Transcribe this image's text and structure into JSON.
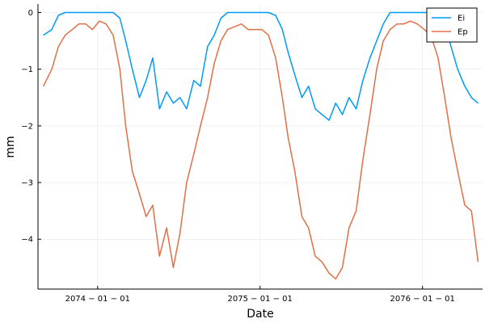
{
  "chart_data": {
    "type": "line",
    "xlabel": "Date",
    "ylabel": "mm",
    "xlim": [
      "2073-08-20",
      "2076-05-15"
    ],
    "ylim": [
      -4.88,
      0.15
    ],
    "xticks": [
      {
        "value": "2074-01-01",
        "label": "2074 − 01 − 01"
      },
      {
        "value": "2075-01-01",
        "label": "2075 − 01 − 01"
      },
      {
        "value": "2076-01-01",
        "label": "2076 − 01 − 01"
      }
    ],
    "yticks": [
      0,
      -1,
      -2,
      -3,
      -4
    ],
    "ytick_labels": [
      "0",
      "−1",
      "−2",
      "−3",
      "−4"
    ],
    "grid": true,
    "legend": "top-right",
    "series": [
      {
        "name": "Ei",
        "color": "#009af9",
        "x": [
          "2073-09-01",
          "2073-09-20",
          "2073-10-05",
          "2073-10-20",
          "2073-11-05",
          "2073-11-20",
          "2073-12-05",
          "2073-12-20",
          "2074-01-05",
          "2074-01-20",
          "2074-02-05",
          "2074-02-20",
          "2074-03-05",
          "2074-03-20",
          "2074-04-05",
          "2074-04-20",
          "2074-05-05",
          "2074-05-20",
          "2074-06-05",
          "2074-06-20",
          "2074-07-05",
          "2074-07-20",
          "2074-08-05",
          "2074-08-20",
          "2074-09-05",
          "2074-09-20",
          "2074-10-05",
          "2074-10-20",
          "2074-11-05",
          "2074-11-20",
          "2074-12-05",
          "2074-12-20",
          "2075-01-05",
          "2075-01-20",
          "2075-02-05",
          "2075-02-20",
          "2075-03-05",
          "2075-03-20",
          "2075-04-05",
          "2075-04-20",
          "2075-05-05",
          "2075-05-20",
          "2075-06-05",
          "2075-06-20",
          "2075-07-05",
          "2075-07-20",
          "2075-08-05",
          "2075-08-20",
          "2075-09-05",
          "2075-09-20",
          "2075-10-05",
          "2075-10-20",
          "2075-11-05",
          "2075-11-20",
          "2075-12-05",
          "2075-12-20",
          "2076-01-05",
          "2076-01-20",
          "2076-02-05",
          "2076-02-20",
          "2076-03-05",
          "2076-03-20",
          "2076-04-05",
          "2076-04-20",
          "2076-05-05"
        ],
        "y": [
          -0.4,
          -0.3,
          -0.05,
          0,
          0,
          0,
          0,
          0,
          0,
          0,
          0,
          -0.1,
          -0.5,
          -1.0,
          -1.5,
          -1.2,
          -0.8,
          -1.7,
          -1.4,
          -1.6,
          -1.5,
          -1.7,
          -1.2,
          -1.3,
          -0.6,
          -0.4,
          -0.1,
          0,
          0,
          0,
          0,
          0,
          0,
          0,
          -0.05,
          -0.3,
          -0.7,
          -1.1,
          -1.5,
          -1.3,
          -1.7,
          -1.8,
          -1.9,
          -1.6,
          -1.8,
          -1.5,
          -1.7,
          -1.2,
          -0.8,
          -0.5,
          -0.2,
          0,
          0,
          0,
          0,
          0,
          0,
          0,
          -0.05,
          -0.2,
          -0.6,
          -1.0,
          -1.3,
          -1.5,
          -1.6
        ]
      },
      {
        "name": "Ep",
        "color": "#e26f46",
        "x": [
          "2073-09-01",
          "2073-09-20",
          "2073-10-05",
          "2073-10-20",
          "2073-11-05",
          "2073-11-20",
          "2073-12-05",
          "2073-12-20",
          "2074-01-05",
          "2074-01-20",
          "2074-02-05",
          "2074-02-20",
          "2074-03-05",
          "2074-03-20",
          "2074-04-05",
          "2074-04-20",
          "2074-05-05",
          "2074-05-20",
          "2074-06-05",
          "2074-06-20",
          "2074-07-05",
          "2074-07-20",
          "2074-08-05",
          "2074-08-20",
          "2074-09-05",
          "2074-09-20",
          "2074-10-05",
          "2074-10-20",
          "2074-11-05",
          "2074-11-20",
          "2074-12-05",
          "2074-12-20",
          "2075-01-05",
          "2075-01-20",
          "2075-02-05",
          "2075-02-20",
          "2075-03-05",
          "2075-03-20",
          "2075-04-05",
          "2075-04-20",
          "2075-05-05",
          "2075-05-20",
          "2075-06-05",
          "2075-06-20",
          "2075-07-05",
          "2075-07-20",
          "2075-08-05",
          "2075-08-20",
          "2075-09-05",
          "2075-09-20",
          "2075-10-05",
          "2075-10-20",
          "2075-11-05",
          "2075-11-20",
          "2075-12-05",
          "2075-12-20",
          "2076-01-05",
          "2076-01-20",
          "2076-02-05",
          "2076-02-20",
          "2076-03-05",
          "2076-03-20",
          "2076-04-05",
          "2076-04-20",
          "2076-05-05"
        ],
        "y": [
          -1.3,
          -1.0,
          -0.6,
          -0.4,
          -0.3,
          -0.2,
          -0.2,
          -0.3,
          -0.15,
          -0.2,
          -0.4,
          -1.0,
          -2.0,
          -2.8,
          -3.2,
          -3.6,
          -3.4,
          -4.3,
          -3.8,
          -4.5,
          -3.9,
          -3.0,
          -2.5,
          -2.0,
          -1.5,
          -0.9,
          -0.5,
          -0.3,
          -0.25,
          -0.2,
          -0.3,
          -0.3,
          -0.3,
          -0.4,
          -0.8,
          -1.5,
          -2.2,
          -2.8,
          -3.6,
          -3.8,
          -4.3,
          -4.4,
          -4.6,
          -4.7,
          -4.5,
          -3.8,
          -3.5,
          -2.6,
          -1.8,
          -1.0,
          -0.5,
          -0.3,
          -0.2,
          -0.2,
          -0.15,
          -0.2,
          -0.3,
          -0.4,
          -0.8,
          -1.5,
          -2.2,
          -2.8,
          -3.4,
          -3.5,
          -4.4
        ]
      }
    ]
  }
}
